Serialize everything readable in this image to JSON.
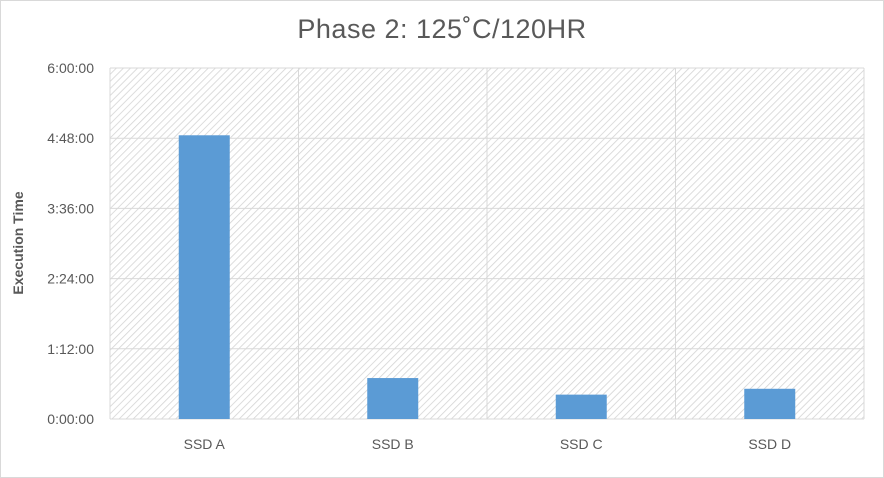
{
  "chart_data": {
    "type": "bar",
    "title": "Phase 2: 125˚C/120HR",
    "xlabel": "",
    "ylabel": "Execution Time",
    "categories": [
      "SSD A",
      "SSD B",
      "SSD C",
      "SSD D"
    ],
    "series": [
      {
        "values_seconds": [
          17460,
          2520,
          1500,
          1860
        ],
        "values": [
          "4:51:00",
          "0:42:00",
          "0:25:00",
          "0:31:00"
        ],
        "color": "#5b9bd5"
      }
    ],
    "ylim_seconds": [
      0,
      21600
    ],
    "yticks": [
      "0:00:00",
      "1:12:00",
      "2:24:00",
      "3:36:00",
      "4:48:00",
      "6:00:00"
    ],
    "grid": true,
    "plot_background": "hatched",
    "legend": "none"
  }
}
